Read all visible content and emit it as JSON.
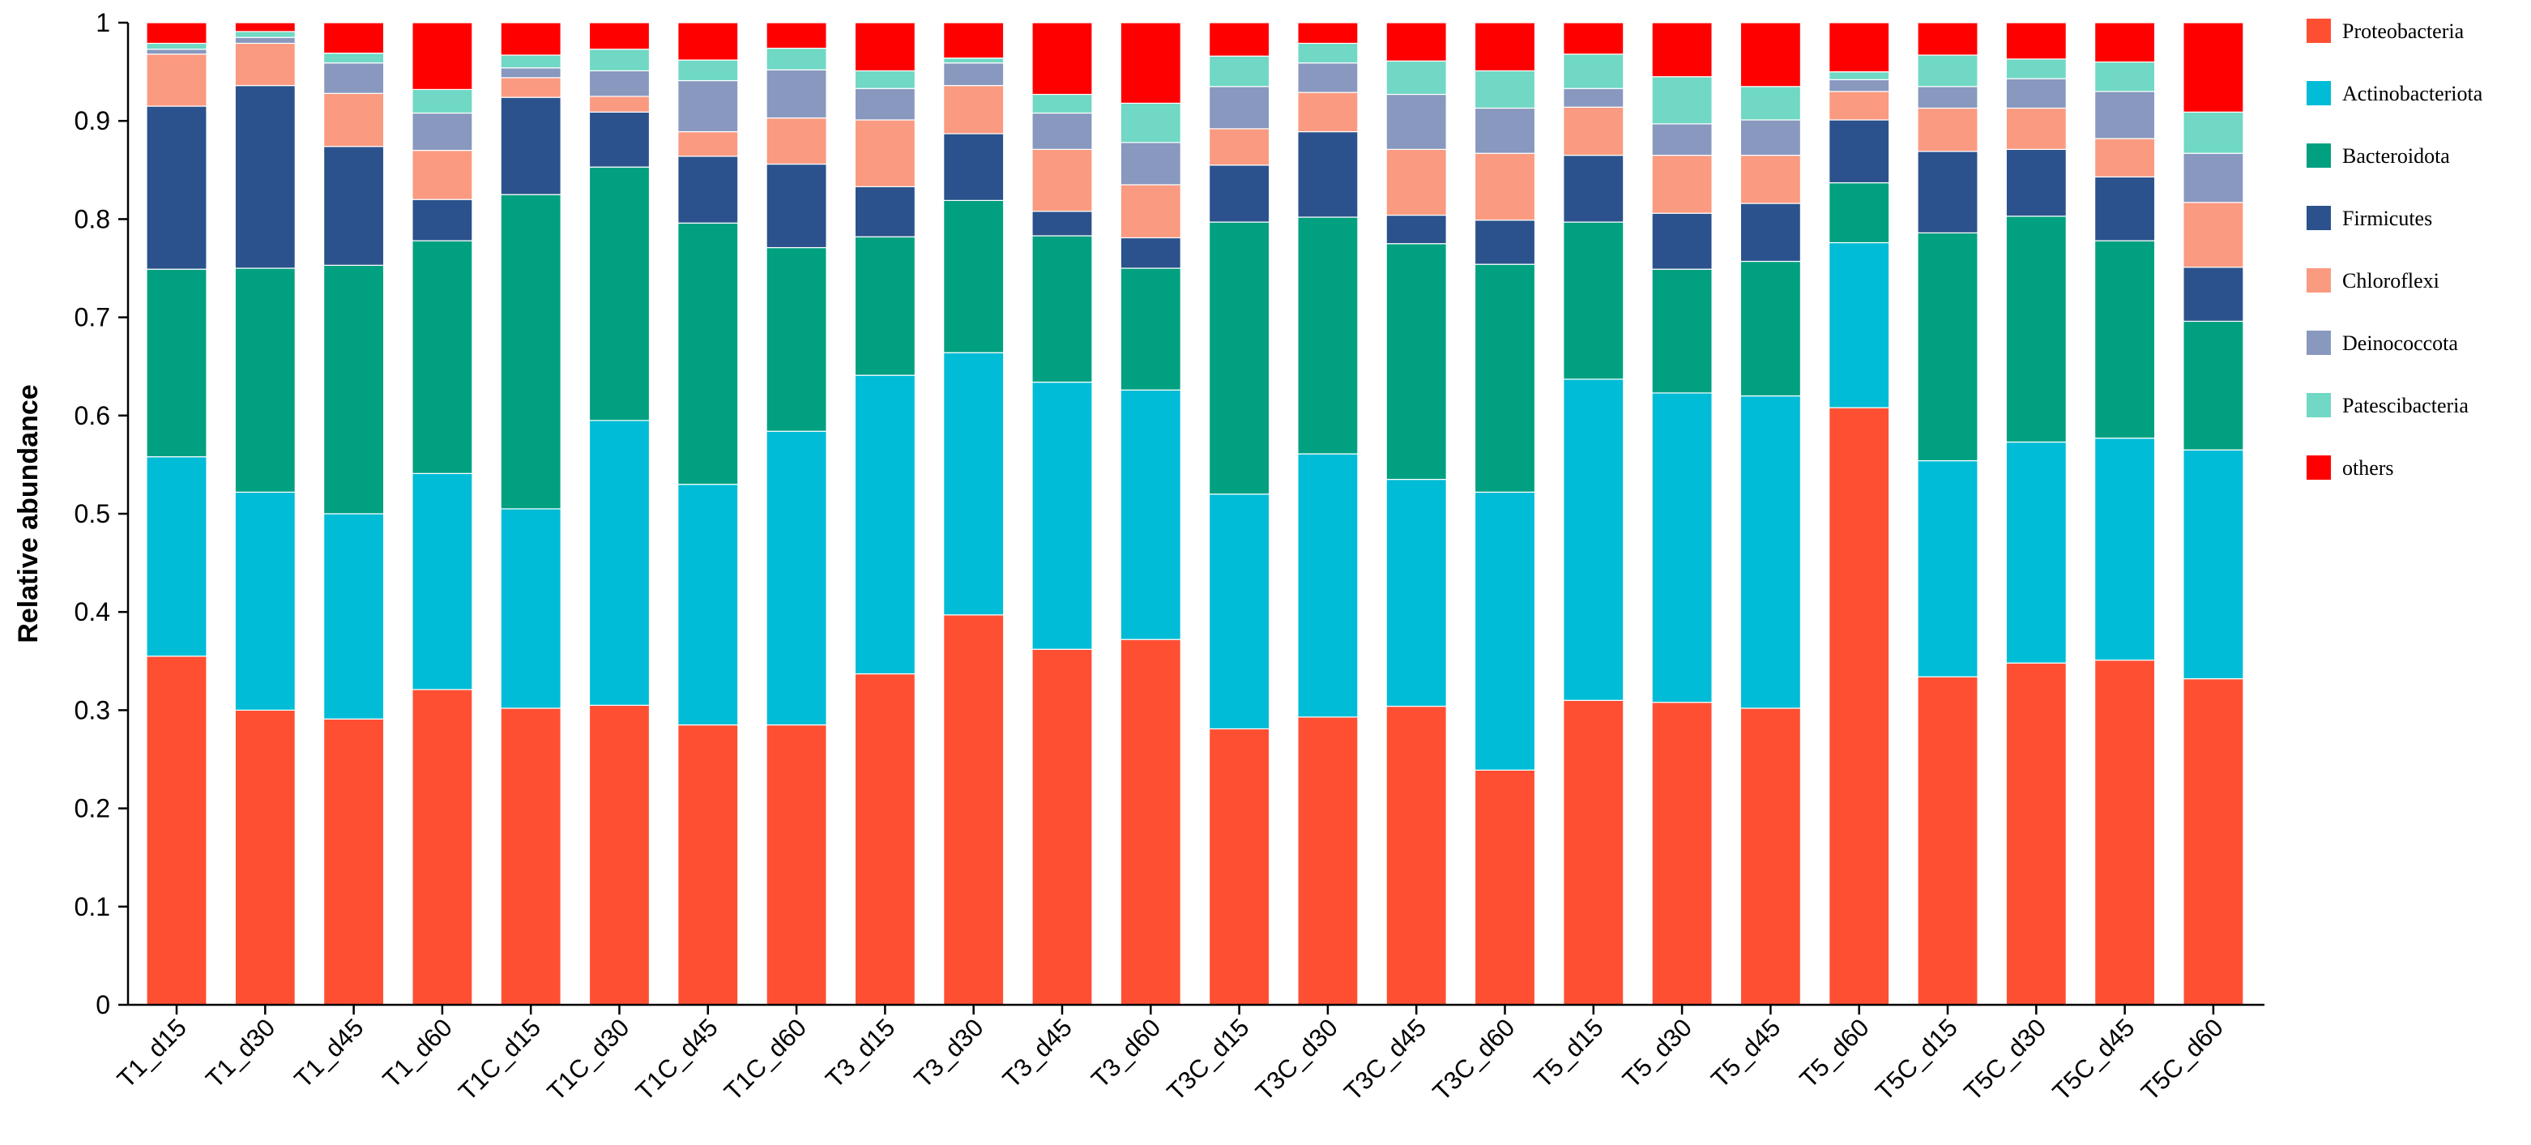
{
  "chart_data": {
    "type": "bar",
    "stacked": true,
    "title": "",
    "xlabel": "",
    "ylabel": "Relative abundance",
    "ylim": [
      0,
      1
    ],
    "y_ticks": [
      "0",
      "0.1",
      "0.2",
      "0.3",
      "0.4",
      "0.5",
      "0.6",
      "0.7",
      "0.8",
      "0.9",
      "1"
    ],
    "y_tick_values": [
      0,
      0.1,
      0.2,
      0.3,
      0.4,
      0.5,
      0.6,
      0.7,
      0.8,
      0.9,
      1
    ],
    "grid": false,
    "legend_position": "right",
    "categories": [
      "T1_d15",
      "T1_d30",
      "T1_d45",
      "T1_d60",
      "T1C_d15",
      "T1C_d30",
      "T1C_d45",
      "T1C_d60",
      "T3_d15",
      "T3_d30",
      "T3_d45",
      "T3_d60",
      "T3C_d15",
      "T3C_d30",
      "T3C_d45",
      "T3C_d60",
      "T5_d15",
      "T5_d30",
      "T5_d45",
      "T5_d60",
      "T5C_d15",
      "T5C_d30",
      "T5C_d45",
      "T5C_d60"
    ],
    "series": [
      {
        "name": "Proteobacteria",
        "color": "#ff4f33",
        "values": [
          0.355,
          0.3,
          0.291,
          0.321,
          0.302,
          0.305,
          0.285,
          0.285,
          0.337,
          0.397,
          0.362,
          0.372,
          0.281,
          0.293,
          0.304,
          0.239,
          0.31,
          0.308,
          0.302,
          0.608,
          0.334,
          0.348,
          0.351,
          0.332
        ]
      },
      {
        "name": "Actinobacteriota",
        "color": "#00bcd6",
        "values": [
          0.203,
          0.222,
          0.209,
          0.22,
          0.203,
          0.29,
          0.245,
          0.299,
          0.304,
          0.267,
          0.272,
          0.254,
          0.239,
          0.268,
          0.231,
          0.283,
          0.327,
          0.315,
          0.318,
          0.168,
          0.22,
          0.225,
          0.226,
          0.233
        ]
      },
      {
        "name": "Bacteroidota",
        "color": "#00a080",
        "values": [
          0.191,
          0.228,
          0.253,
          0.237,
          0.32,
          0.258,
          0.266,
          0.187,
          0.141,
          0.155,
          0.149,
          0.124,
          0.277,
          0.241,
          0.24,
          0.232,
          0.16,
          0.126,
          0.137,
          0.061,
          0.232,
          0.23,
          0.201,
          0.131
        ]
      },
      {
        "name": "Firmicutes",
        "color": "#2b528c",
        "values": [
          0.166,
          0.186,
          0.121,
          0.042,
          0.099,
          0.056,
          0.068,
          0.085,
          0.051,
          0.068,
          0.025,
          0.031,
          0.058,
          0.087,
          0.029,
          0.045,
          0.068,
          0.057,
          0.059,
          0.064,
          0.083,
          0.068,
          0.065,
          0.055
        ]
      },
      {
        "name": "Chloroflexi",
        "color": "#fa9a80",
        "values": [
          0.053,
          0.043,
          0.054,
          0.05,
          0.02,
          0.016,
          0.025,
          0.047,
          0.068,
          0.049,
          0.063,
          0.054,
          0.037,
          0.04,
          0.067,
          0.068,
          0.049,
          0.059,
          0.049,
          0.029,
          0.044,
          0.042,
          0.039,
          0.066
        ]
      },
      {
        "name": "Deinococcota",
        "color": "#8898bf",
        "values": [
          0.005,
          0.006,
          0.031,
          0.038,
          0.01,
          0.026,
          0.052,
          0.049,
          0.032,
          0.023,
          0.037,
          0.043,
          0.043,
          0.03,
          0.056,
          0.046,
          0.019,
          0.032,
          0.036,
          0.012,
          0.022,
          0.03,
          0.048,
          0.05
        ]
      },
      {
        "name": "Patescibacteria",
        "color": "#70d8c4",
        "values": [
          0.006,
          0.006,
          0.01,
          0.024,
          0.013,
          0.022,
          0.021,
          0.022,
          0.018,
          0.005,
          0.019,
          0.04,
          0.031,
          0.02,
          0.034,
          0.038,
          0.035,
          0.048,
          0.034,
          0.008,
          0.032,
          0.02,
          0.03,
          0.042
        ]
      },
      {
        "name": "others",
        "color": "#ff0000",
        "values": [
          0.021,
          0.009,
          0.031,
          0.068,
          0.033,
          0.027,
          0.038,
          0.026,
          0.049,
          0.036,
          0.073,
          0.082,
          0.034,
          0.021,
          0.039,
          0.049,
          0.032,
          0.055,
          0.065,
          0.05,
          0.033,
          0.037,
          0.04,
          0.091
        ]
      }
    ]
  }
}
